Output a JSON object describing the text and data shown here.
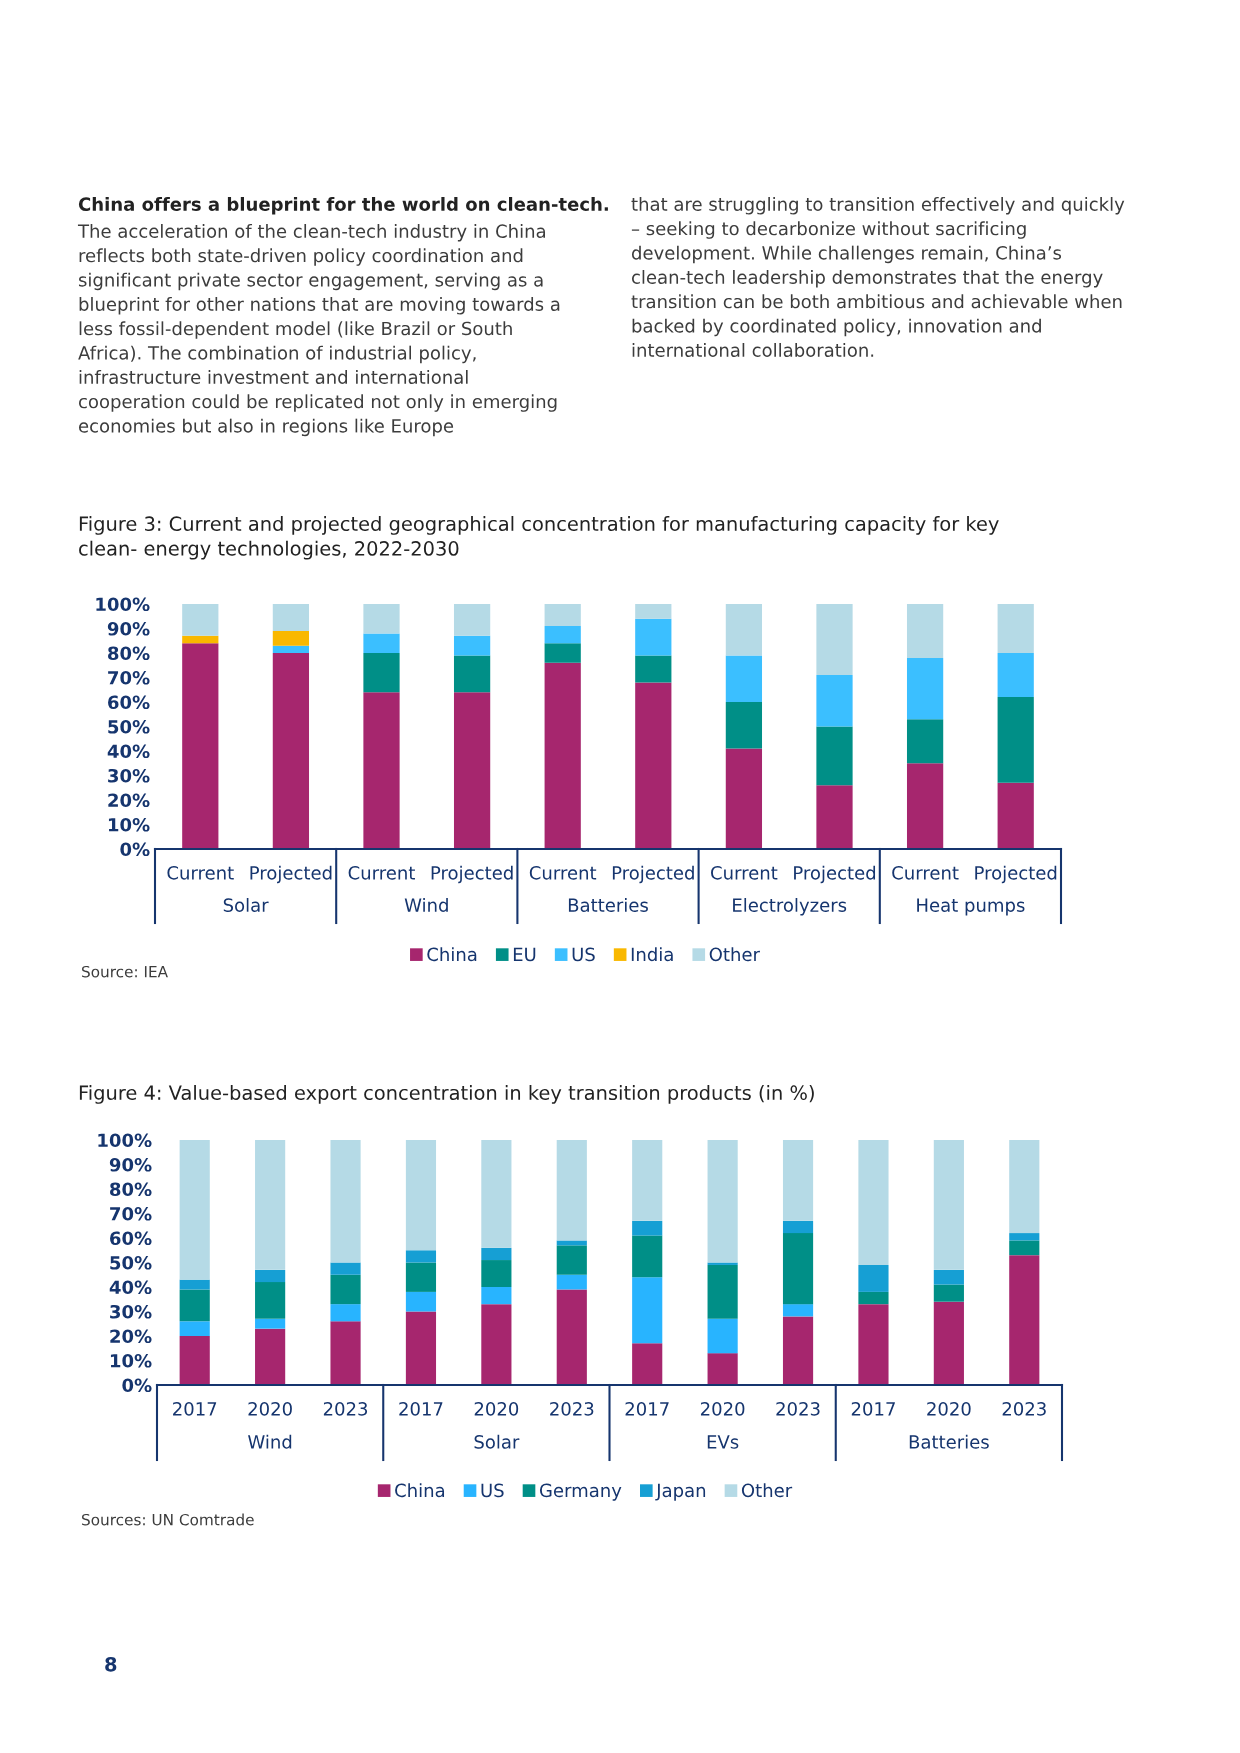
{
  "chart_data": [
    {
      "type": "bar",
      "stacked": true,
      "title": "Figure 3: Current and projected geographical concentration for manufacturing capacity for key clean- energy technologies, 2022-2030",
      "categories": [
        "Current",
        "Projected",
        "Current",
        "Projected",
        "Current",
        "Projected",
        "Current",
        "Projected",
        "Current",
        "Projected"
      ],
      "series": [
        {
          "name": "China",
          "color": "#a6266e",
          "values": [
            84,
            80,
            64,
            64,
            76,
            68,
            41,
            26,
            35,
            27
          ]
        },
        {
          "name": "EU",
          "color": "#008f87",
          "values": [
            0,
            0,
            16,
            15,
            8,
            11,
            19,
            24,
            18,
            35
          ]
        },
        {
          "name": "US",
          "color": "#3bbfff",
          "values": [
            0,
            3,
            8,
            8,
            7,
            15,
            19,
            21,
            25,
            18
          ]
        },
        {
          "name": "India",
          "color": "#f9b800",
          "values": [
            3,
            6,
            0,
            0,
            0,
            0,
            0,
            0,
            0,
            0
          ]
        },
        {
          "name": "Other",
          "color": "#b5dae6",
          "values": [
            13,
            11,
            12,
            13,
            9,
            6,
            21,
            29,
            22,
            20
          ]
        }
      ],
      "ylim": [
        0,
        100
      ],
      "yticks": [
        {
          "value": 0,
          "label": "0%"
        },
        {
          "value": 10,
          "label": "10%"
        },
        {
          "value": 20,
          "label": "20%"
        },
        {
          "value": 30,
          "label": "30%"
        },
        {
          "value": 40,
          "label": "40%"
        },
        {
          "value": 50,
          "label": "50%"
        },
        {
          "value": 60,
          "label": "60%"
        },
        {
          "value": 70,
          "label": "70%"
        },
        {
          "value": 80,
          "label": "80%"
        },
        {
          "value": 90,
          "label": "90%"
        },
        {
          "value": 100,
          "label": "100%"
        }
      ],
      "legend": "bottom",
      "annotations": [
        "China offers a blueprint for the world on clean-tech.",
        "The acceleration of the clean-tech industry in China reflects both state-driven policy coordination and significant private sector engagement, serving as a blueprint for other nations that are moving towards a less fossil-dependent model (like Brazil or South Africa). The combination of industrial policy, infrastructure investment and international cooperation could be replicated not only in emerging economies but also in regions like Europe",
        "that are struggling to transition effectively and quickly – seeking to decarbonize without sacrificing development. While challenges remain, China’s clean-tech leadership demonstrates that the energy transition can be both ambitious and achievable when backed by coordinated policy, innovation and international collaboration.",
        "Solar",
        "Wind",
        "Batteries",
        "Electrolyzers",
        "Heat pumps",
        "Source: IEA"
      ]
    },
    {
      "type": "bar",
      "stacked": true,
      "title": "Figure 4: Value-based export concentration in key transition products (in %)",
      "categories": [
        "2017",
        "2020",
        "2023",
        "2017",
        "2020",
        "2023",
        "2017",
        "2020",
        "2023",
        "2017",
        "2020",
        "2023"
      ],
      "series": [
        {
          "name": "China",
          "color": "#a6266e",
          "values": [
            20,
            23,
            26,
            30,
            33,
            39,
            17,
            13,
            28,
            33,
            34,
            53
          ]
        },
        {
          "name": "US",
          "color": "#28b4ff",
          "values": [
            6,
            4,
            7,
            8,
            7,
            6,
            27,
            14,
            5,
            0,
            0,
            0
          ]
        },
        {
          "name": "Germany",
          "color": "#008f87",
          "values": [
            13,
            15,
            12,
            12,
            11,
            12,
            17,
            22,
            29,
            5,
            7,
            6
          ]
        },
        {
          "name": "Japan",
          "color": "#169fd4",
          "values": [
            4,
            5,
            5,
            5,
            5,
            2,
            6,
            1,
            5,
            11,
            6,
            3
          ]
        },
        {
          "name": "Other",
          "color": "#b5dae6",
          "values": [
            57,
            53,
            50,
            45,
            44,
            41,
            33,
            50,
            33,
            51,
            53,
            38
          ]
        }
      ],
      "ylim": [
        0,
        100
      ],
      "yticks": [
        {
          "value": 0,
          "label": "0%"
        },
        {
          "value": 10,
          "label": "10%"
        },
        {
          "value": 20,
          "label": "20%"
        },
        {
          "value": 30,
          "label": "30%"
        },
        {
          "value": 40,
          "label": "40%"
        },
        {
          "value": 50,
          "label": "50%"
        },
        {
          "value": 60,
          "label": "60%"
        },
        {
          "value": 70,
          "label": "70%"
        },
        {
          "value": 80,
          "label": "80%"
        },
        {
          "value": 90,
          "label": "90%"
        },
        {
          "value": 100,
          "label": "100%"
        }
      ],
      "legend": "bottom",
      "annotations": [
        "Wind",
        "Solar",
        "EVs",
        "Batteries",
        "Sources: UN Comtrade",
        "8"
      ]
    }
  ]
}
